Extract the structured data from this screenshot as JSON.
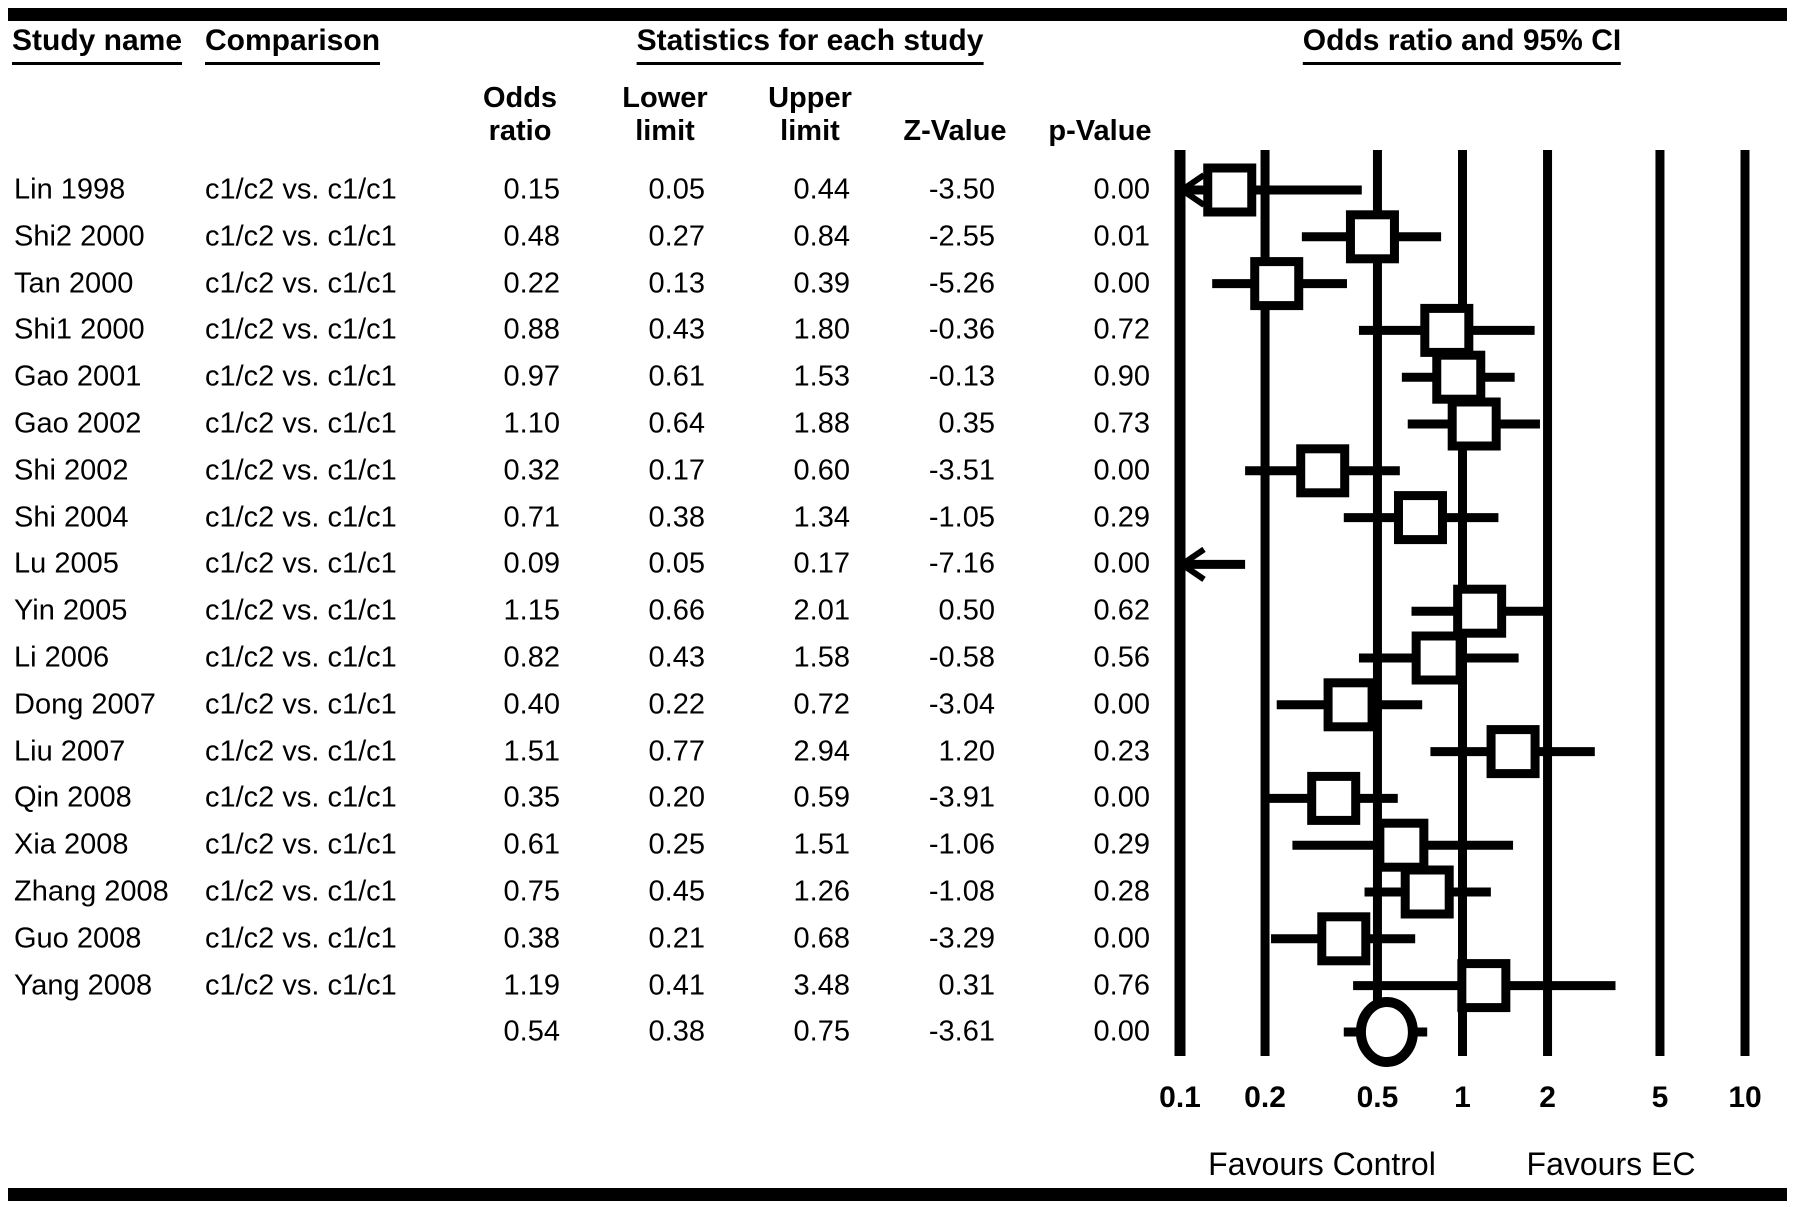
{
  "header": {
    "study_name": "Study name",
    "comparison": "Comparison",
    "statistics": "Statistics for each study",
    "or_ci": "Odds ratio and 95% CI"
  },
  "columns": {
    "odds_ratio": [
      "Odds",
      "ratio"
    ],
    "lower_limit": [
      "Lower",
      "limit"
    ],
    "upper_limit": [
      "Upper",
      "limit"
    ],
    "z_value": [
      "Z-Value"
    ],
    "p_value": [
      "p-Value"
    ]
  },
  "colors": {
    "ink": "#000000",
    "background": "#ffffff"
  },
  "chart_data": {
    "type": "forest",
    "x_axis": {
      "scale": "log10",
      "range": [
        0.1,
        10
      ],
      "ticks": [
        0.1,
        0.2,
        0.5,
        1,
        2,
        5,
        10
      ],
      "tick_labels": [
        "0.1",
        "0.2",
        "0.5",
        "1",
        "2",
        "5",
        "10"
      ]
    },
    "footer_labels": {
      "left": "Favours Control",
      "right": "Favours EC"
    },
    "studies": [
      {
        "name": "Lin 1998",
        "comparison": "c1/c2 vs. c1/c1",
        "or": 0.15,
        "lower": 0.05,
        "upper": 0.44,
        "z": -3.5,
        "p": 0.0
      },
      {
        "name": "Shi2 2000",
        "comparison": "c1/c2 vs. c1/c1",
        "or": 0.48,
        "lower": 0.27,
        "upper": 0.84,
        "z": -2.55,
        "p": 0.01
      },
      {
        "name": "Tan 2000",
        "comparison": "c1/c2 vs. c1/c1",
        "or": 0.22,
        "lower": 0.13,
        "upper": 0.39,
        "z": -5.26,
        "p": 0.0
      },
      {
        "name": "Shi1 2000",
        "comparison": "c1/c2 vs. c1/c1",
        "or": 0.88,
        "lower": 0.43,
        "upper": 1.8,
        "z": -0.36,
        "p": 0.72
      },
      {
        "name": "Gao 2001",
        "comparison": "c1/c2 vs. c1/c1",
        "or": 0.97,
        "lower": 0.61,
        "upper": 1.53,
        "z": -0.13,
        "p": 0.9
      },
      {
        "name": "Gao 2002",
        "comparison": "c1/c2 vs. c1/c1",
        "or": 1.1,
        "lower": 0.64,
        "upper": 1.88,
        "z": 0.35,
        "p": 0.73
      },
      {
        "name": "Shi 2002",
        "comparison": "c1/c2 vs. c1/c1",
        "or": 0.32,
        "lower": 0.17,
        "upper": 0.6,
        "z": -3.51,
        "p": 0.0
      },
      {
        "name": "Shi 2004",
        "comparison": "c1/c2 vs. c1/c1",
        "or": 0.71,
        "lower": 0.38,
        "upper": 1.34,
        "z": -1.05,
        "p": 0.29
      },
      {
        "name": "Lu 2005",
        "comparison": "c1/c2 vs. c1/c1",
        "or": 0.09,
        "lower": 0.05,
        "upper": 0.17,
        "z": -7.16,
        "p": 0.0
      },
      {
        "name": "Yin 2005",
        "comparison": "c1/c2 vs. c1/c1",
        "or": 1.15,
        "lower": 0.66,
        "upper": 2.01,
        "z": 0.5,
        "p": 0.62
      },
      {
        "name": "Li 2006",
        "comparison": "c1/c2 vs. c1/c1",
        "or": 0.82,
        "lower": 0.43,
        "upper": 1.58,
        "z": -0.58,
        "p": 0.56
      },
      {
        "name": "Dong 2007",
        "comparison": "c1/c2 vs. c1/c1",
        "or": 0.4,
        "lower": 0.22,
        "upper": 0.72,
        "z": -3.04,
        "p": 0.0
      },
      {
        "name": "Liu 2007",
        "comparison": "c1/c2 vs. c1/c1",
        "or": 1.51,
        "lower": 0.77,
        "upper": 2.94,
        "z": 1.2,
        "p": 0.23
      },
      {
        "name": "Qin 2008",
        "comparison": "c1/c2 vs. c1/c1",
        "or": 0.35,
        "lower": 0.2,
        "upper": 0.59,
        "z": -3.91,
        "p": 0.0
      },
      {
        "name": "Xia 2008",
        "comparison": "c1/c2 vs. c1/c1",
        "or": 0.61,
        "lower": 0.25,
        "upper": 1.51,
        "z": -1.06,
        "p": 0.29
      },
      {
        "name": "Zhang 2008",
        "comparison": "c1/c2 vs. c1/c1",
        "or": 0.75,
        "lower": 0.45,
        "upper": 1.26,
        "z": -1.08,
        "p": 0.28
      },
      {
        "name": "Guo 2008",
        "comparison": "c1/c2 vs. c1/c1",
        "or": 0.38,
        "lower": 0.21,
        "upper": 0.68,
        "z": -3.29,
        "p": 0.0
      },
      {
        "name": "Yang 2008",
        "comparison": "c1/c2 vs. c1/c1",
        "or": 1.19,
        "lower": 0.41,
        "upper": 3.48,
        "z": 0.31,
        "p": 0.76
      }
    ],
    "summary": {
      "or": 0.54,
      "lower": 0.38,
      "upper": 0.75,
      "z": -3.61,
      "p": 0.0,
      "marker": "circle"
    }
  }
}
